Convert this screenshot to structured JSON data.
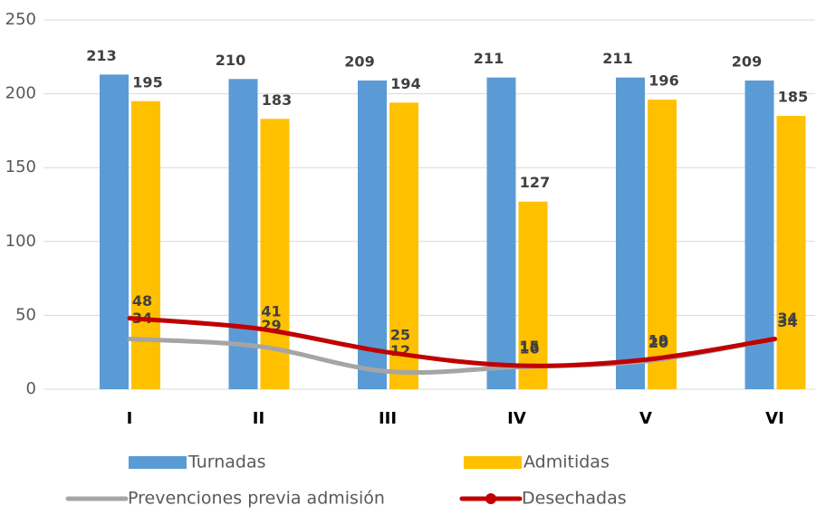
{
  "chart_data": {
    "type": "bar-line",
    "categories": [
      "I",
      "II",
      "III",
      "IV",
      "V",
      "VI"
    ],
    "series": [
      {
        "name": "Turnadas",
        "type": "bar",
        "color": "#5b9bd5",
        "values": [
          213,
          210,
          209,
          211,
          211,
          209
        ]
      },
      {
        "name": "Admitidas",
        "type": "bar",
        "color": "#ffc000",
        "values": [
          195,
          183,
          194,
          127,
          196,
          185
        ]
      },
      {
        "name": "Prevenciones previa admisión",
        "type": "line",
        "color": "#a5a5a5",
        "values": [
          34,
          29,
          12,
          15,
          19,
          34
        ]
      },
      {
        "name": "Desechadas",
        "type": "line",
        "color": "#c00000",
        "values": [
          48,
          41,
          25,
          16,
          20,
          34
        ]
      }
    ],
    "ylim": [
      0,
      250
    ],
    "yticks": [
      0,
      50,
      100,
      150,
      200,
      250
    ],
    "grid": true
  }
}
